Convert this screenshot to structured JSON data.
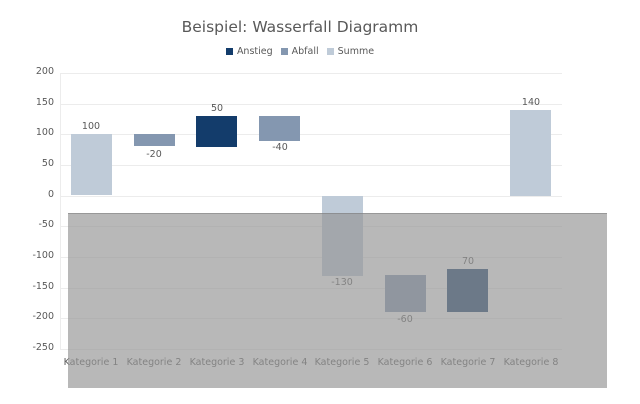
{
  "chart_data": {
    "type": "bar",
    "subtype": "waterfall",
    "title": "Beispiel: Wasserfall Diagramm",
    "xlabel": "",
    "ylabel": "",
    "ylim": [
      -250,
      200
    ],
    "yticks": [
      "200",
      "150",
      "100",
      "50",
      "0",
      "-50",
      "-100",
      "-150",
      "-200",
      "-250"
    ],
    "grid": true,
    "legend_position": "top",
    "legend": [
      {
        "name": "Anstieg",
        "color": "#133c6b"
      },
      {
        "name": "Abfall",
        "color": "#8497b0"
      },
      {
        "name": "Summe",
        "color": "#bfcbd8"
      }
    ],
    "categories": [
      "Kategorie 1",
      "Kategorie 2",
      "Kategorie 3",
      "Kategorie 4",
      "Kategorie 5",
      "Kategorie 6",
      "Kategorie 7",
      "Kategorie 8"
    ],
    "values": [
      100,
      -20,
      50,
      -40,
      -130,
      -60,
      70,
      140
    ],
    "value_labels": [
      "100",
      "-20",
      "50",
      "-40",
      "-130",
      "-60",
      "70",
      "140"
    ],
    "bars": [
      {
        "category": "Kategorie 1",
        "type": "Summe",
        "start": 0,
        "end": 100
      },
      {
        "category": "Kategorie 2",
        "type": "Abfall",
        "start": 100,
        "end": 80
      },
      {
        "category": "Kategorie 3",
        "type": "Anstieg",
        "start": 80,
        "end": 130
      },
      {
        "category": "Kategorie 4",
        "type": "Abfall",
        "start": 130,
        "end": 90
      },
      {
        "category": "Kategorie 5",
        "type": "Summe",
        "start": 0,
        "end": -130
      },
      {
        "category": "Kategorie 6",
        "type": "Abfall",
        "start": -130,
        "end": -190
      },
      {
        "category": "Kategorie 7",
        "type": "Anstieg",
        "start": -190,
        "end": -120
      },
      {
        "category": "Kategorie 8",
        "type": "Summe",
        "start": 0,
        "end": 140
      }
    ]
  },
  "colors": {
    "Anstieg": "#133c6b",
    "Abfall": "#8497b0",
    "Summe": "#bfcbd8",
    "overlay": "#999999"
  }
}
